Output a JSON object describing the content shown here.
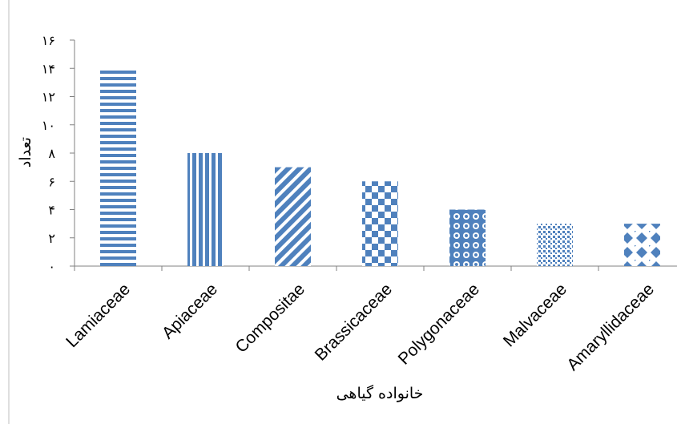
{
  "chart_data": {
    "type": "bar",
    "categories": [
      "Lamiaceae",
      "Apiaceae",
      "Compositae",
      "Brassicaceae",
      "Polygonaceae",
      "Malvaceae",
      "Amaryllidaceae"
    ],
    "values": [
      14,
      8,
      7,
      6,
      4,
      3,
      3
    ],
    "ylim": [
      0,
      16
    ],
    "yticks": [
      0,
      2,
      4,
      6,
      8,
      10,
      12,
      14,
      16
    ],
    "ytick_labels": [
      "۰",
      "۲",
      "۴",
      "۶",
      "۸",
      "۱۰",
      "۱۲",
      "۱۴",
      "۱۶"
    ],
    "xlabel": "خانواده گیاهی",
    "ylabel": "تعداد",
    "bar_color": "#4f81bd",
    "bar_patterns": [
      "horizontal-stripes",
      "vertical-stripes",
      "diagonal-stripes",
      "checkerboard",
      "circles",
      "dots",
      "diamonds"
    ],
    "grid": false,
    "legend": "none"
  }
}
